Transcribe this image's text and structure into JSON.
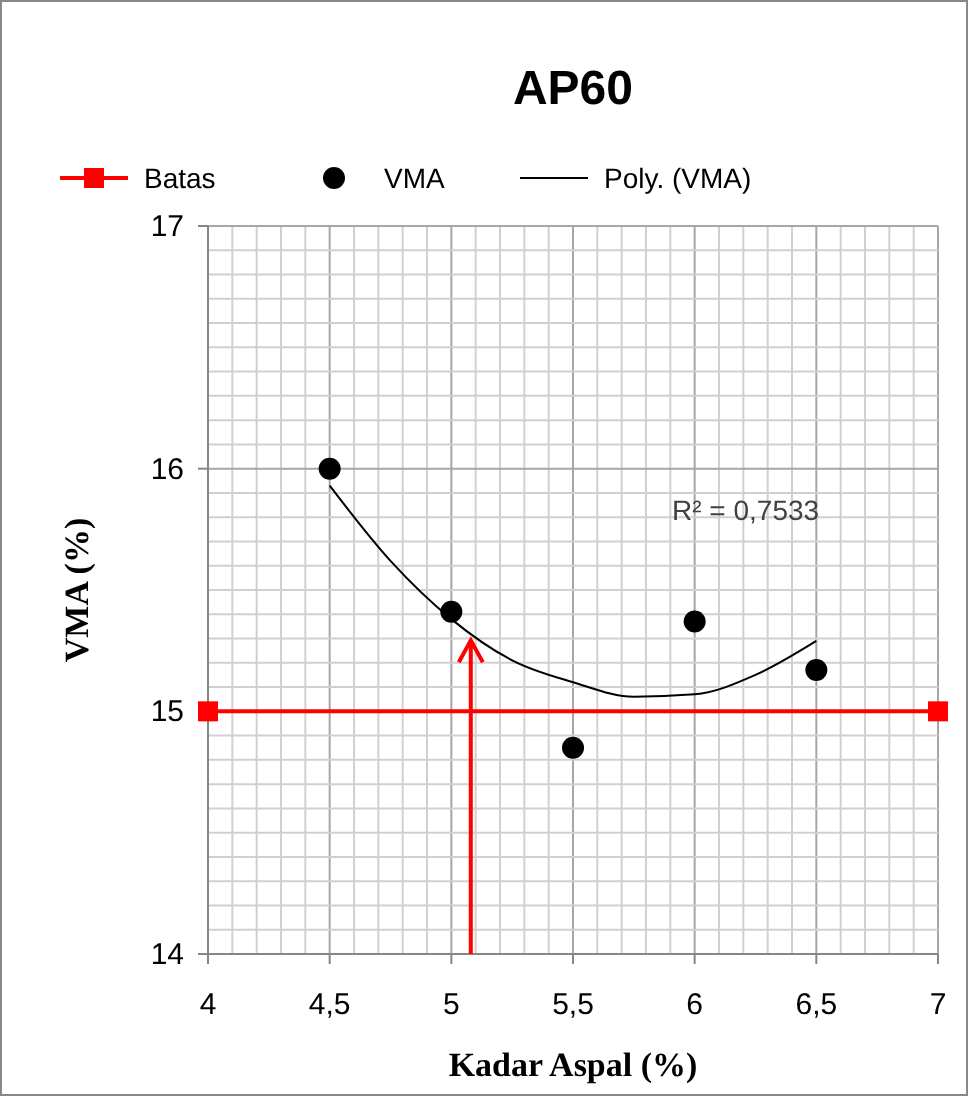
{
  "chart_data": {
    "type": "scatter",
    "title": "AP60",
    "xlabel": "Kadar Aspal (%)",
    "ylabel": "VMA (%)",
    "xlim": [
      4,
      7
    ],
    "xticks": [
      {
        "value": 4,
        "label": "4"
      },
      {
        "value": 4.5,
        "label": "4,5"
      },
      {
        "value": 5,
        "label": "5"
      },
      {
        "value": 5.5,
        "label": "5,5"
      },
      {
        "value": 6,
        "label": "6"
      },
      {
        "value": 6.5,
        "label": "6,5"
      },
      {
        "value": 7,
        "label": "7"
      }
    ],
    "ylim": [
      14,
      17
    ],
    "yticks": [
      14,
      15,
      16,
      17
    ],
    "grid": true,
    "legend": "top",
    "series": [
      {
        "name": "Batas",
        "type": "line",
        "color": "#ff0000",
        "marker": "square",
        "x": [
          4,
          7
        ],
        "values": [
          15,
          15
        ]
      },
      {
        "name": "VMA",
        "color": "#000000",
        "marker": "circle",
        "x": [
          4.5,
          5,
          5.5,
          6,
          6.5
        ],
        "values": [
          16.0,
          15.41,
          14.85,
          15.37,
          15.17
        ]
      },
      {
        "name": "Poly. (VMA)",
        "type": "line",
        "color": "#000000",
        "marker": "none",
        "x": [
          4.5,
          4.75,
          5,
          5.25,
          5.5,
          5.75,
          6,
          6.25,
          6.5
        ],
        "values": [
          15.93,
          15.62,
          15.38,
          15.21,
          15.12,
          15.06,
          15.07,
          15.15,
          15.29
        ]
      }
    ],
    "ref_lines": [
      {
        "axis": "x",
        "value": 5.08,
        "color": "#ff0000"
      }
    ],
    "annotations": [
      "R² = 0,7533"
    ]
  }
}
